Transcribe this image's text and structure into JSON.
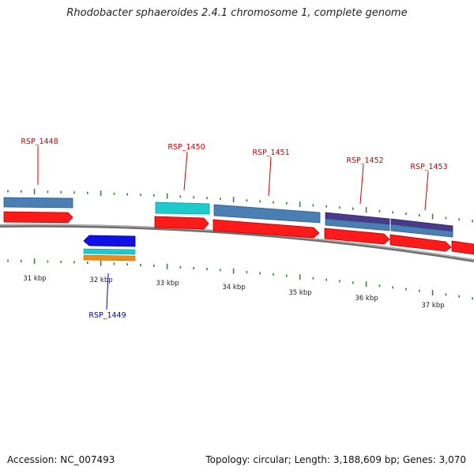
{
  "title": "Rhodobacter sphaeroides 2.4.1 chromosome 1, complete genome",
  "footer": {
    "accession": "Accession: NC_007493",
    "summary": "Topology: circular; Length: 3,188,609 bp; Genes: 3,070"
  },
  "colors": {
    "backbone": "#8c8c8c",
    "tick": "#2e8b2e",
    "cds_forward": "#ff1a1a",
    "cds_reverse": "#1010e8",
    "gene_label_forward": "#cc0000",
    "gene_label_reverse": "#0000cc",
    "feature_steel_blue": "#4a7fb5",
    "feature_cyan": "#1ccccc",
    "feature_purple": "#4b3a8c",
    "feature_orange": "#f08a10"
  },
  "ruler": {
    "unit": "kbp",
    "labels": [
      "31 kbp",
      "32 kbp",
      "33 kbp",
      "34 kbp",
      "35 kbp",
      "36 kbp",
      "37 kbp"
    ]
  },
  "genes": [
    {
      "name": "RSP_1448",
      "strand": "forward"
    },
    {
      "name": "RSP_1449",
      "strand": "reverse"
    },
    {
      "name": "RSP_1450",
      "strand": "forward"
    },
    {
      "name": "RSP_1451",
      "strand": "forward"
    },
    {
      "name": "RSP_1452",
      "strand": "forward"
    },
    {
      "name": "RSP_1453",
      "strand": "forward"
    }
  ]
}
